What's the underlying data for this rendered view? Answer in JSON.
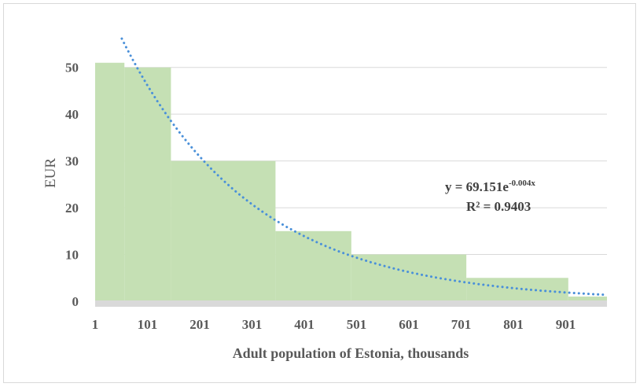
{
  "chart_data": {
    "type": "bar",
    "title": "",
    "xlabel": "Adult population of Estonia, thousands",
    "ylabel": "EUR",
    "x_ticks": [
      "1",
      "101",
      "201",
      "301",
      "401",
      "501",
      "601",
      "701",
      "801",
      "901"
    ],
    "y_ticks": [
      "0",
      "10",
      "20",
      "30",
      "40",
      "50"
    ],
    "xlim": [
      1,
      980
    ],
    "ylim": [
      0,
      55
    ],
    "grid": "horizontal",
    "steps": [
      {
        "from": 1,
        "to": 57,
        "value": 51
      },
      {
        "from": 57,
        "to": 146,
        "value": 50
      },
      {
        "from": 146,
        "to": 346,
        "value": 30
      },
      {
        "from": 346,
        "to": 491,
        "value": 15
      },
      {
        "from": 491,
        "to": 711,
        "value": 10
      },
      {
        "from": 711,
        "to": 906,
        "value": 5
      },
      {
        "from": 906,
        "to": 980,
        "value": 1
      }
    ],
    "trendline": {
      "type": "exponential",
      "a": 69.151,
      "b": -0.004,
      "equation_prefix": "y = 69.151e",
      "equation_exponent": "-0.004x",
      "r_squared_label": "R² = 0.9403",
      "color": "#4a90d9",
      "style": "dotted"
    },
    "fill_color": "#c5e0b4"
  }
}
